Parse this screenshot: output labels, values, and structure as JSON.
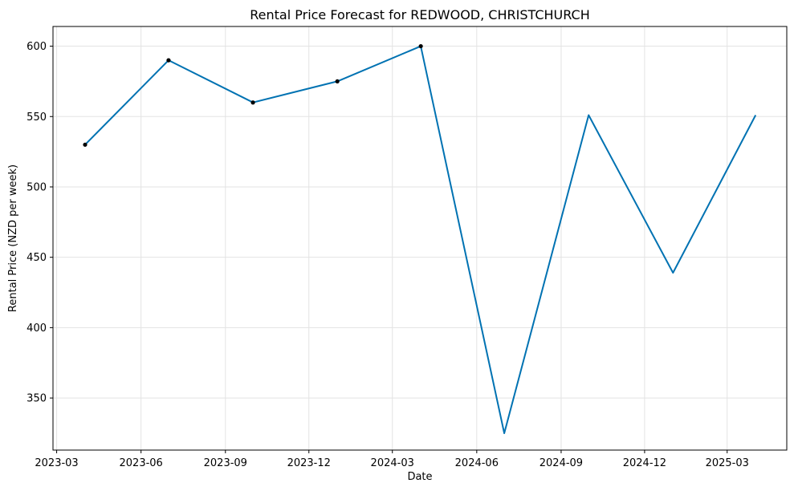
{
  "chart_data": {
    "type": "line",
    "title": "Rental Price Forecast for REDWOOD, CHRISTCHURCH",
    "xlabel": "Date",
    "ylabel": "Rental Price (NZD per week)",
    "x_ticks": [
      "2023-03-01",
      "2023-06-01",
      "2023-09-01",
      "2023-12-01",
      "2024-03-01",
      "2024-06-01",
      "2024-09-01",
      "2024-12-01",
      "2025-03-01"
    ],
    "x_tick_labels": [
      "2023-03",
      "2023-06",
      "2023-09",
      "2023-12",
      "2024-03",
      "2024-06",
      "2024-09",
      "2024-12",
      "2025-03"
    ],
    "y_ticks": [
      350,
      400,
      450,
      500,
      550,
      600
    ],
    "xlim": [
      "2023-02-25",
      "2025-05-05"
    ],
    "ylim": [
      313,
      614
    ],
    "grid": true,
    "series": [
      {
        "kind": "line",
        "color": "#0072b2",
        "x": [
          "2023-04-01",
          "2023-07-01",
          "2023-10-01",
          "2024-01-01",
          "2024-04-01",
          "2024-07-01",
          "2024-10-01",
          "2025-01-01",
          "2025-04-01"
        ],
        "y": [
          530,
          590,
          560,
          575,
          600,
          325,
          551,
          439,
          551
        ]
      },
      {
        "kind": "points",
        "color": "#000000",
        "x": [
          "2023-04-01",
          "2023-07-01",
          "2023-10-01",
          "2024-01-01",
          "2024-04-01"
        ],
        "y": [
          530,
          590,
          560,
          575,
          600
        ]
      }
    ]
  }
}
